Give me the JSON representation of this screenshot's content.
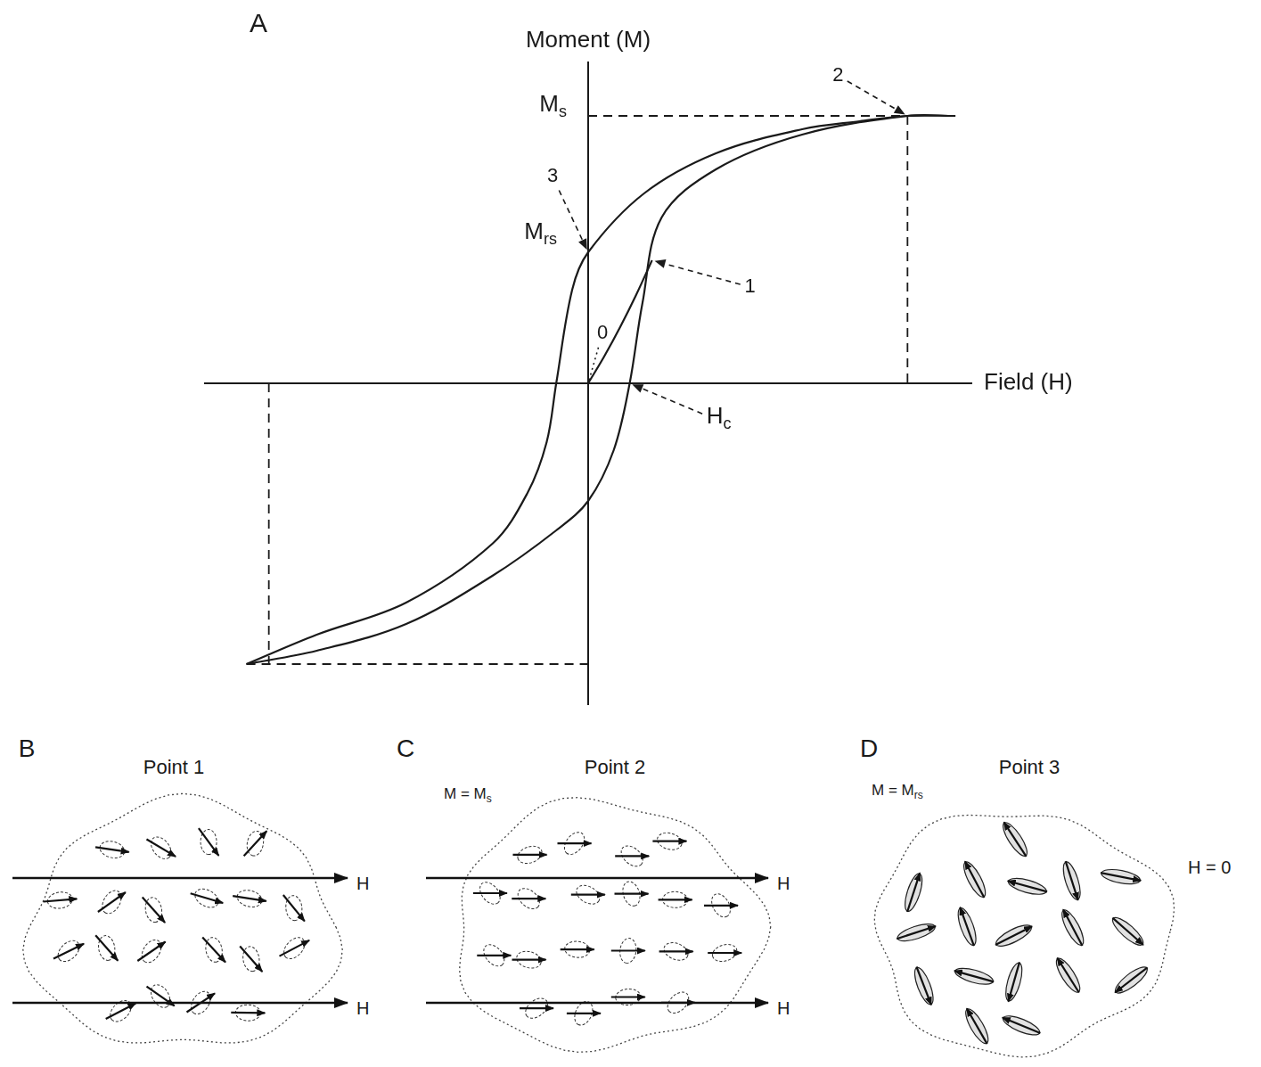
{
  "chart_data": {
    "type": "line",
    "panel_letter": "A",
    "x_label": "Field (H)",
    "y_label": "Moment (M)",
    "xlim": [
      -1.2,
      1.2
    ],
    "ylim": [
      -1.2,
      1.2
    ],
    "tick_labels": false,
    "grid": false,
    "series": [
      {
        "color": "#1a1a1a",
        "line_style": "solid",
        "x": [
          1.15,
          1.0,
          0.85,
          0.67,
          0.4,
          0.175,
          0,
          -0.05,
          -0.1,
          -0.13,
          -0.19,
          -0.3,
          -0.57,
          -0.85,
          -1.07
        ],
        "values": [
          1.0,
          1.0,
          0.98,
          0.95,
          0.86,
          0.71,
          0.49,
          0.35,
          0.0,
          -0.22,
          -0.41,
          -0.6,
          -0.82,
          -0.94,
          -1.05
        ]
      },
      {
        "color": "#1a1a1a",
        "line_style": "solid",
        "x": [
          -1.07,
          -0.85,
          -0.57,
          -0.3,
          -0.1,
          0,
          0.08,
          0.13,
          0.17,
          0.23,
          0.4,
          0.67,
          1.0,
          1.15
        ],
        "values": [
          -1.05,
          -1.0,
          -0.9,
          -0.72,
          -0.55,
          -0.44,
          -0.25,
          0.0,
          0.3,
          0.62,
          0.8,
          0.93,
          1.0,
          1.0
        ]
      },
      {
        "color": "#1a1a1a",
        "line_style": "solid",
        "x": [
          0,
          0.05,
          0.1,
          0.15,
          0.2
        ],
        "values": [
          0,
          0.1,
          0.21,
          0.33,
          0.46
        ]
      },
      {
        "color": "#1a1a1a",
        "line_style": "dashed",
        "x": [
          0,
          1.0
        ],
        "values": [
          1.0,
          1.0
        ]
      },
      {
        "color": "#1a1a1a",
        "line_style": "dashed",
        "x": [
          1.0,
          1.0
        ],
        "values": [
          1.0,
          0
        ]
      },
      {
        "color": "#1a1a1a",
        "line_style": "dashed",
        "x": [
          -1.0,
          -1.0
        ],
        "values": [
          0,
          -1.05
        ]
      },
      {
        "color": "#1a1a1a",
        "line_style": "dashed",
        "x": [
          -1.07,
          0
        ],
        "values": [
          -1.05,
          -1.05
        ]
      }
    ],
    "annotations": [
      {
        "text": "M",
        "subscript": "s",
        "x": 0,
        "y": 1.0
      },
      {
        "text": "M",
        "subscript": "rs",
        "x": 0,
        "y": 0.49
      },
      {
        "text": "3",
        "x": 0,
        "y": 0.49
      },
      {
        "text": "1",
        "x": 0.2,
        "y": 0.46
      },
      {
        "text": "2",
        "x": 1.0,
        "y": 1.0
      },
      {
        "text": "0",
        "x": 0,
        "y": 0
      },
      {
        "text": "H",
        "subscript": "c",
        "x": 0.13,
        "y": 0
      }
    ]
  },
  "panels": [
    {
      "letter": "B",
      "title": "Point 1",
      "field_labels": [
        "H",
        "H"
      ]
    },
    {
      "letter": "C",
      "title": "Point 2",
      "state": {
        "text": "M = M",
        "subscript": "s"
      },
      "field_labels": [
        "H",
        "H"
      ]
    },
    {
      "letter": "D",
      "title": "Point 3",
      "state": {
        "text": "M = M",
        "subscript": "rs"
      },
      "field_labels": [
        "H = 0"
      ]
    }
  ]
}
